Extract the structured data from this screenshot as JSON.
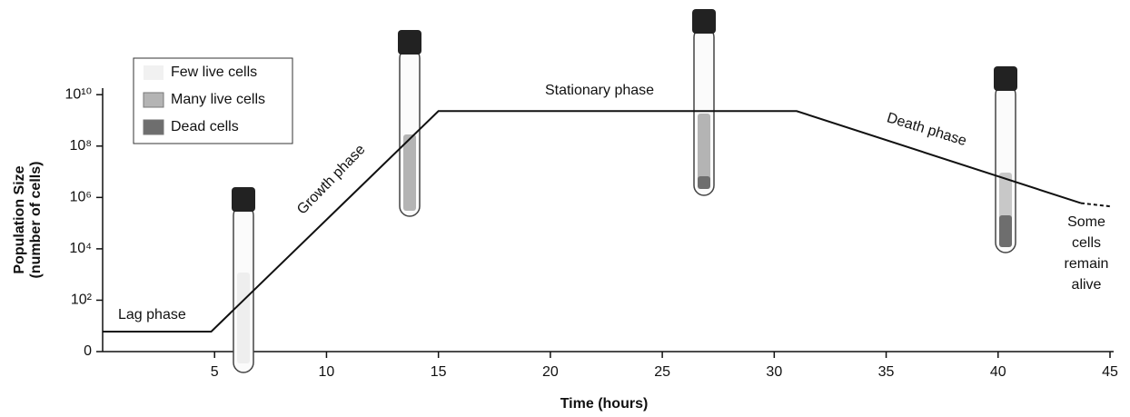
{
  "chart_data": {
    "type": "line",
    "xlabel": "Time (hours)",
    "ylabel": [
      "Population Size",
      "(number of cells)"
    ],
    "xlim": [
      0,
      45
    ],
    "xticks": [
      5,
      10,
      15,
      20,
      25,
      30,
      35,
      40,
      45
    ],
    "ylim": [
      0,
      18000000000
    ],
    "log_scale": true,
    "yticks": [
      0,
      {
        "value": 100,
        "label": "10²"
      },
      {
        "value": 10000,
        "label": "10⁴"
      },
      {
        "value": 1000000,
        "label": "10⁶"
      },
      {
        "value": 100000000,
        "label": "10⁸"
      },
      {
        "value": 10000000000,
        "label": "10¹⁰"
      }
    ],
    "series": [
      {
        "color": "#111111",
        "x": [
          0,
          4.85,
          15,
          31,
          43.7
        ],
        "values": [
          6,
          6,
          2300000000,
          2300000000,
          600000
        ]
      },
      {
        "color": "#111111",
        "dashed": true,
        "x": [
          43.7,
          45
        ],
        "values": [
          600000,
          450000
        ]
      }
    ],
    "annotations": [
      "Lag phase",
      "Growth phase",
      "Stationary phase",
      "Death phase",
      [
        "Some",
        "cells",
        "remain",
        "alive"
      ]
    ],
    "legend": [
      {
        "name": "Few live cells",
        "color": "#f1f1f1"
      },
      {
        "name": "Many live cells",
        "color": "#b4b4b4"
      },
      {
        "name": "Dead cells",
        "color": "#6e6e6e"
      }
    ]
  }
}
